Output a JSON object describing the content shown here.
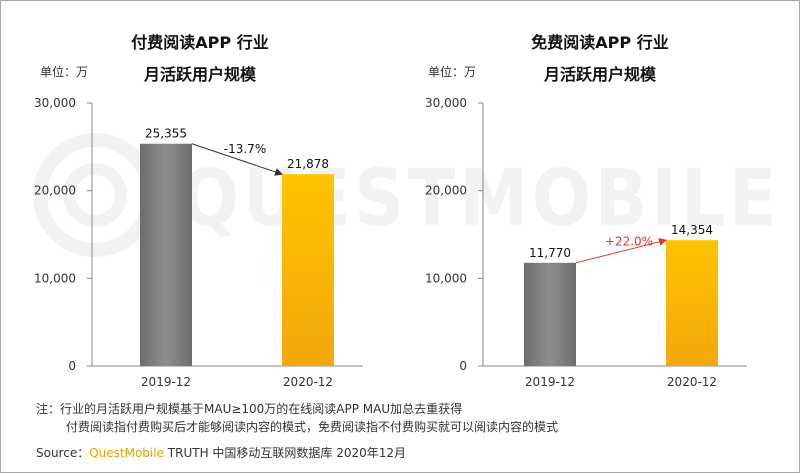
{
  "watermark": "QUESTMOBILE",
  "colors": {
    "gray": "#7d7d7d",
    "yellow": "#f7b10a",
    "red_arrow": "#e8332c",
    "dark_arrow": "#333333"
  },
  "chart_data": [
    {
      "type": "bar",
      "title": "付费阅读APP 行业",
      "subtitle": "月活跃用户规模",
      "unit_label": "单位：万",
      "categories": [
        "2019-12",
        "2020-12"
      ],
      "values": [
        25355,
        21878
      ],
      "data_labels": [
        "25,355",
        "21,878"
      ],
      "bar_colors": [
        "gray",
        "yellow"
      ],
      "y_ticks": [
        "0",
        "10,000",
        "20,000",
        "30,000"
      ],
      "ylim": [
        0,
        30000
      ],
      "growth": "-13.7%",
      "growth_color": "dark_arrow",
      "grid": false
    },
    {
      "type": "bar",
      "title": "免费阅读APP 行业",
      "subtitle": "月活跃用户规模",
      "unit_label": "单位：万",
      "categories": [
        "2019-12",
        "2020-12"
      ],
      "values": [
        11770,
        14354
      ],
      "data_labels": [
        "11,770",
        "14,354"
      ],
      "bar_colors": [
        "gray",
        "yellow"
      ],
      "y_ticks": [
        "0",
        "10,000",
        "20,000",
        "30,000"
      ],
      "ylim": [
        0,
        30000
      ],
      "growth": "+22.0%",
      "growth_color": "red_arrow",
      "grid": false
    }
  ],
  "notes": {
    "line1": "注：行业的月活跃用户规模基于MAU≥100万的在线阅读APP MAU加总去重获得",
    "line2": "付费阅读指付费购买后才能够阅读内容的模式，免费阅读指不付费购买就可以阅读内容的模式"
  },
  "source": {
    "prefix": "Source：",
    "brand": "QuestMobile",
    "suffix": " TRUTH 中国移动互联网数据库 2020年12月"
  }
}
